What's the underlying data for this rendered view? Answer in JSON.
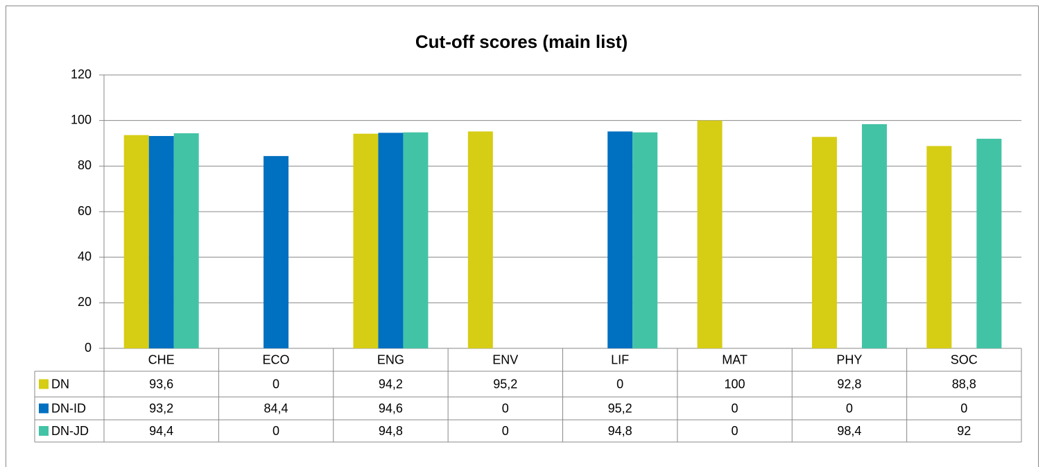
{
  "chart_data": {
    "type": "bar",
    "title": "Cut-off scores (main list)",
    "categories": [
      "CHE",
      "ECO",
      "ENG",
      "ENV",
      "LIF",
      "MAT",
      "PHY",
      "SOC"
    ],
    "series": [
      {
        "name": "DN",
        "color": "#d6cd15",
        "values": [
          93.6,
          0,
          94.2,
          95.2,
          0,
          100,
          92.8,
          88.8
        ],
        "value_labels": [
          "93,6",
          "0",
          "94,2",
          "95,2",
          "0",
          "100",
          "92,8",
          "88,8"
        ]
      },
      {
        "name": "DN-ID",
        "color": "#0070c0",
        "values": [
          93.2,
          84.4,
          94.6,
          0,
          95.2,
          0,
          0,
          0
        ],
        "value_labels": [
          "93,2",
          "84,4",
          "94,6",
          "0",
          "95,2",
          "0",
          "0",
          "0"
        ]
      },
      {
        "name": "DN-JD",
        "color": "#43c3a5",
        "values": [
          94.4,
          0,
          94.8,
          0,
          94.8,
          0,
          98.4,
          92
        ],
        "value_labels": [
          "94,4",
          "0",
          "94,8",
          "0",
          "94,8",
          "0",
          "98,4",
          "92"
        ]
      }
    ],
    "ylim": [
      0,
      120
    ],
    "yticks": [
      0,
      20,
      40,
      60,
      80,
      100,
      120
    ],
    "grid": true
  }
}
